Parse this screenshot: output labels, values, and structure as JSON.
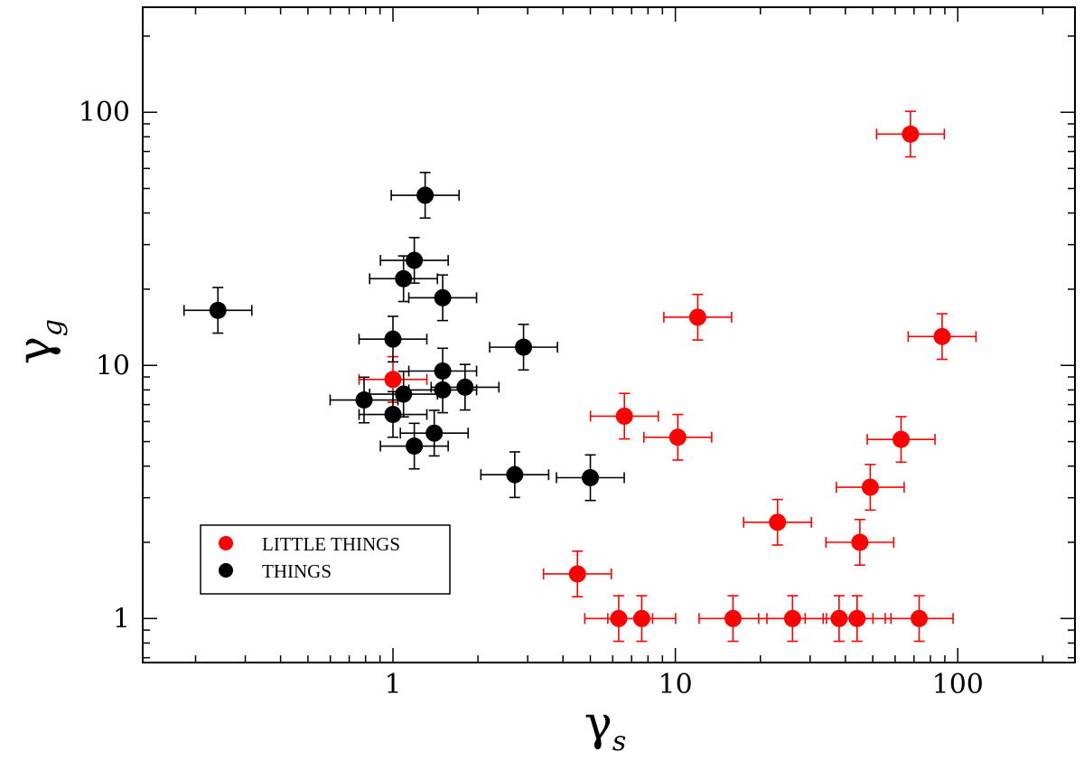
{
  "chart_data": {
    "type": "scatter",
    "x_scale": "log",
    "y_scale": "log",
    "xlim": [
      0.13,
      260
    ],
    "ylim": [
      0.67,
      260
    ],
    "xlabel": {
      "main": "γ",
      "sub": "s"
    },
    "ylabel": {
      "main": "γ",
      "sub": "g"
    },
    "x_ticks": [
      {
        "value": 1,
        "label": "1"
      },
      {
        "value": 10,
        "label": "10"
      },
      {
        "value": 100,
        "label": "100"
      }
    ],
    "y_ticks": [
      {
        "value": 1,
        "label": "1"
      },
      {
        "value": 10,
        "label": "10"
      },
      {
        "value": 100,
        "label": "100"
      }
    ],
    "grid": false,
    "legend": {
      "position": "lower-left",
      "frame": true
    },
    "series": [
      {
        "name": "LITTLE THINGS",
        "color": "#ff0000",
        "points": [
          {
            "x": 1.0,
            "y": 8.8
          },
          {
            "x": 4.5,
            "y": 1.5
          },
          {
            "x": 6.3,
            "y": 1.0
          },
          {
            "x": 6.6,
            "y": 6.3
          },
          {
            "x": 7.6,
            "y": 1.0
          },
          {
            "x": 10.2,
            "y": 5.2
          },
          {
            "x": 12.0,
            "y": 15.5
          },
          {
            "x": 16.0,
            "y": 1.0
          },
          {
            "x": 23.0,
            "y": 2.4
          },
          {
            "x": 26.0,
            "y": 1.0
          },
          {
            "x": 38.0,
            "y": 1.0
          },
          {
            "x": 44.0,
            "y": 1.0
          },
          {
            "x": 45.0,
            "y": 2.0
          },
          {
            "x": 49.0,
            "y": 3.3
          },
          {
            "x": 63.0,
            "y": 5.1
          },
          {
            "x": 68.0,
            "y": 82.0
          },
          {
            "x": 73.0,
            "y": 1.0
          },
          {
            "x": 88.0,
            "y": 13.0
          }
        ]
      },
      {
        "name": "THINGS",
        "color": "#000000",
        "points": [
          {
            "x": 0.24,
            "y": 16.5
          },
          {
            "x": 0.79,
            "y": 7.3
          },
          {
            "x": 1.0,
            "y": 12.7
          },
          {
            "x": 1.0,
            "y": 6.4
          },
          {
            "x": 1.09,
            "y": 22.0
          },
          {
            "x": 1.09,
            "y": 7.7
          },
          {
            "x": 1.19,
            "y": 26.0
          },
          {
            "x": 1.19,
            "y": 4.8
          },
          {
            "x": 1.3,
            "y": 47.0
          },
          {
            "x": 1.4,
            "y": 5.4
          },
          {
            "x": 1.5,
            "y": 18.5
          },
          {
            "x": 1.5,
            "y": 9.5
          },
          {
            "x": 1.5,
            "y": 8.0
          },
          {
            "x": 1.8,
            "y": 8.2
          },
          {
            "x": 2.7,
            "y": 3.7
          },
          {
            "x": 2.9,
            "y": 11.8
          },
          {
            "x": 5.0,
            "y": 3.6
          }
        ]
      }
    ]
  }
}
